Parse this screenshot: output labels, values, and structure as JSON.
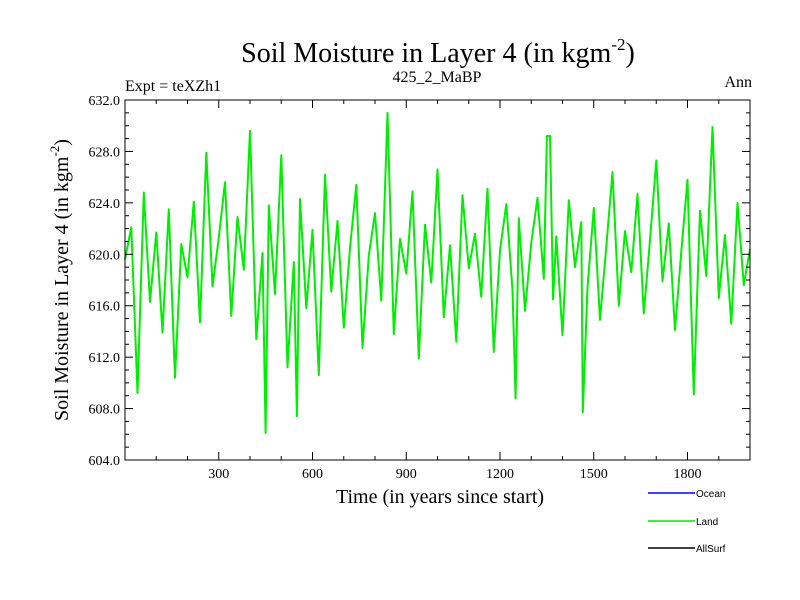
{
  "chart_data": {
    "type": "line",
    "title_main": "Soil Moisture in Layer 4 (in kgm",
    "title_sup": "-2",
    "title_close": ")",
    "left_label": "Expt = teXZh1",
    "center_label": "425_2_MaBP",
    "right_label": "Ann",
    "xlabel": "Time (in years since start)",
    "ylabel_main": "Soil Moisture in Layer 4 (in kgm",
    "ylabel_sup": "-2",
    "ylabel_close": ")",
    "xlim": [
      0,
      2000
    ],
    "ylim": [
      604.0,
      632.0
    ],
    "x_ticks": [
      300,
      600,
      900,
      1200,
      1500,
      1800
    ],
    "x_tick_labels": [
      "300",
      "600",
      "900",
      "1200",
      "1500",
      "1800"
    ],
    "y_ticks": [
      604,
      608,
      612,
      616,
      620,
      624,
      628,
      632
    ],
    "y_tick_labels": [
      "604.0",
      "608.0",
      "612.0",
      "616.0",
      "620.0",
      "624.0",
      "628.0",
      "632.0"
    ],
    "legend": [
      {
        "name": "Ocean",
        "color": "#0000ff"
      },
      {
        "name": "Land",
        "color": "#00ee00"
      },
      {
        "name": "AllSurf",
        "color": "#000000"
      }
    ],
    "series": [
      {
        "name": "Land",
        "color": "#00ee00",
        "x": [
          0,
          20,
          40,
          60,
          80,
          100,
          120,
          140,
          160,
          180,
          200,
          220,
          240,
          260,
          280,
          300,
          320,
          340,
          360,
          380,
          400,
          420,
          440,
          450,
          460,
          480,
          500,
          520,
          540,
          550,
          560,
          580,
          600,
          620,
          640,
          660,
          680,
          700,
          720,
          740,
          760,
          780,
          800,
          820,
          840,
          860,
          880,
          900,
          920,
          940,
          960,
          980,
          1000,
          1020,
          1040,
          1060,
          1080,
          1100,
          1120,
          1140,
          1160,
          1180,
          1200,
          1220,
          1240,
          1250,
          1260,
          1280,
          1300,
          1320,
          1340,
          1350,
          1360,
          1370,
          1380,
          1400,
          1420,
          1440,
          1460,
          1465,
          1480,
          1500,
          1520,
          1540,
          1560,
          1580,
          1600,
          1620,
          1640,
          1660,
          1680,
          1700,
          1720,
          1740,
          1760,
          1780,
          1800,
          1820,
          1840,
          1860,
          1880,
          1900,
          1920,
          1940,
          1960,
          1980,
          2000
        ],
        "values": [
          619.6,
          622.1,
          609.2,
          624.8,
          616.3,
          621.7,
          613.9,
          623.5,
          610.4,
          620.8,
          618.2,
          624.1,
          614.7,
          627.9,
          617.5,
          621.3,
          625.6,
          615.2,
          622.9,
          618.8,
          629.6,
          613.4,
          620.1,
          606.1,
          623.8,
          616.9,
          627.7,
          611.2,
          619.4,
          607.4,
          624.3,
          615.8,
          621.9,
          610.6,
          626.2,
          617.1,
          622.6,
          614.3,
          620.5,
          625.4,
          612.7,
          619.9,
          623.2,
          616.4,
          631.0,
          613.8,
          621.2,
          618.5,
          624.9,
          611.9,
          622.3,
          617.8,
          626.6,
          615.1,
          620.7,
          613.2,
          624.6,
          618.9,
          621.6,
          616.7,
          625.1,
          612.4,
          620.3,
          623.9,
          617.2,
          608.8,
          622.8,
          615.6,
          620.9,
          624.4,
          618.1,
          629.2,
          629.2,
          616.5,
          621.4,
          613.7,
          624.2,
          619.0,
          622.5,
          607.7,
          617.4,
          623.6,
          614.9,
          620.6,
          626.4,
          616.0,
          621.8,
          618.6,
          624.7,
          615.4,
          621.1,
          627.3,
          617.9,
          622.4,
          614.1,
          620.2,
          625.8,
          609.1,
          623.4,
          618.3,
          629.9,
          616.6,
          621.5,
          614.6,
          624.0,
          617.6,
          620.4
        ]
      }
    ]
  }
}
